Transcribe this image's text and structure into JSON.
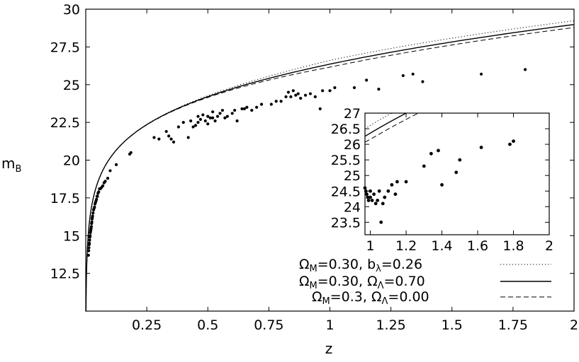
{
  "chart_data": [
    {
      "id": "main",
      "type": "line",
      "title": "",
      "xlabel": "z",
      "ylabel": "m",
      "ylabel_sub": "B",
      "xlim": [
        0,
        2
      ],
      "ylim": [
        10,
        30
      ],
      "grid": false,
      "x_ticks": [
        0.25,
        0.5,
        0.75,
        1,
        1.25,
        1.5,
        1.75,
        2
      ],
      "x_tick_labels": [
        "0.25",
        "0.5",
        "0.75",
        "1",
        "1.25",
        "1.5",
        "1.75",
        "2"
      ],
      "y_ticks": [
        12.5,
        15,
        17.5,
        20,
        22.5,
        25,
        27.5,
        30
      ],
      "y_tick_labels": [
        "12.5",
        "15",
        "17.5",
        "20",
        "22.5",
        "25",
        "27.5",
        "30"
      ],
      "series": [
        {
          "key": "omm_b",
          "style": "dotted",
          "offset": 0.25
        },
        {
          "key": "omm_ol70",
          "style": "solid",
          "offset": 0
        },
        {
          "key": "omm_ol00",
          "style": "dashed",
          "offset": -0.2
        }
      ],
      "points": [
        [
          0.011,
          13.7
        ],
        [
          0.012,
          14.0
        ],
        [
          0.013,
          14.2
        ],
        [
          0.014,
          14.4
        ],
        [
          0.015,
          14.5
        ],
        [
          0.016,
          14.7
        ],
        [
          0.017,
          14.9
        ],
        [
          0.018,
          15.0
        ],
        [
          0.019,
          15.2
        ],
        [
          0.02,
          15.3
        ],
        [
          0.021,
          15.4
        ],
        [
          0.022,
          15.5
        ],
        [
          0.023,
          15.6
        ],
        [
          0.024,
          15.8
        ],
        [
          0.025,
          15.9
        ],
        [
          0.026,
          16.1
        ],
        [
          0.027,
          16.2
        ],
        [
          0.028,
          16.3
        ],
        [
          0.03,
          16.5
        ],
        [
          0.032,
          16.7
        ],
        [
          0.034,
          16.8
        ],
        [
          0.036,
          16.9
        ],
        [
          0.038,
          17.1
        ],
        [
          0.04,
          17.2
        ],
        [
          0.042,
          17.3
        ],
        [
          0.044,
          17.4
        ],
        [
          0.046,
          17.6
        ],
        [
          0.048,
          17.6
        ],
        [
          0.05,
          17.8
        ],
        [
          0.053,
          17.9
        ],
        [
          0.056,
          18.1
        ],
        [
          0.06,
          18.1
        ],
        [
          0.065,
          18.2
        ],
        [
          0.07,
          18.3
        ],
        [
          0.075,
          18.5
        ],
        [
          0.08,
          18.6
        ],
        [
          0.09,
          18.8
        ],
        [
          0.1,
          19.3
        ],
        [
          0.125,
          19.7
        ],
        [
          0.18,
          20.4
        ],
        [
          0.185,
          20.5
        ],
        [
          0.28,
          21.5
        ],
        [
          0.3,
          21.4
        ],
        [
          0.33,
          21.9
        ],
        [
          0.34,
          21.6
        ],
        [
          0.35,
          21.4
        ],
        [
          0.36,
          21.2
        ],
        [
          0.38,
          22.2
        ],
        [
          0.4,
          22.5
        ],
        [
          0.42,
          21.5
        ],
        [
          0.43,
          22.6
        ],
        [
          0.44,
          22.2
        ],
        [
          0.45,
          22.3
        ],
        [
          0.46,
          22.5
        ],
        [
          0.46,
          22.9
        ],
        [
          0.47,
          22.7
        ],
        [
          0.48,
          23.0
        ],
        [
          0.49,
          22.6
        ],
        [
          0.5,
          22.9
        ],
        [
          0.5,
          22.4
        ],
        [
          0.51,
          22.8
        ],
        [
          0.52,
          22.8
        ],
        [
          0.52,
          23.2
        ],
        [
          0.53,
          22.6
        ],
        [
          0.54,
          22.9
        ],
        [
          0.55,
          23.1
        ],
        [
          0.56,
          23.3
        ],
        [
          0.57,
          22.8
        ],
        [
          0.58,
          22.9
        ],
        [
          0.6,
          23.1
        ],
        [
          0.61,
          23.3
        ],
        [
          0.62,
          22.6
        ],
        [
          0.64,
          23.4
        ],
        [
          0.65,
          23.4
        ],
        [
          0.66,
          23.5
        ],
        [
          0.68,
          23.3
        ],
        [
          0.7,
          23.5
        ],
        [
          0.72,
          23.7
        ],
        [
          0.76,
          23.7
        ],
        [
          0.78,
          23.9
        ],
        [
          0.8,
          23.9
        ],
        [
          0.82,
          24.2
        ],
        [
          0.83,
          24.5
        ],
        [
          0.84,
          24.2
        ],
        [
          0.85,
          24.6
        ],
        [
          0.86,
          24.3
        ],
        [
          0.87,
          24.4
        ],
        [
          0.88,
          24.1
        ],
        [
          0.9,
          24.3
        ],
        [
          0.92,
          24.4
        ],
        [
          0.94,
          24.2
        ],
        [
          0.96,
          23.4
        ],
        [
          0.97,
          24.6
        ],
        [
          1.0,
          24.6
        ],
        [
          1.02,
          24.8
        ],
        [
          1.1,
          24.8
        ],
        [
          1.15,
          25.3
        ],
        [
          1.2,
          24.7
        ],
        [
          1.3,
          25.6
        ],
        [
          1.34,
          25.7
        ],
        [
          1.38,
          25.2
        ],
        [
          1.62,
          25.7
        ],
        [
          1.8,
          26.0
        ]
      ]
    },
    {
      "id": "inset",
      "type": "line",
      "title": "",
      "xlim": [
        0.97,
        2
      ],
      "ylim": [
        23.1,
        27
      ],
      "grid": false,
      "x_ticks": [
        1.2,
        1.4,
        1.6,
        1.8,
        2
      ],
      "x_tick_labels": [
        "1.2",
        "1.4",
        "1.6",
        "1.8",
        "2"
      ],
      "x_minor_ticks": [
        1
      ],
      "x_minor_labels": [
        "1"
      ],
      "y_ticks": [
        23.5,
        24,
        24.5,
        25,
        25.5,
        26,
        26.5,
        27
      ],
      "y_tick_labels": [
        "23.5",
        "24",
        "24.5",
        "25",
        "25.5",
        "26",
        "26.5",
        "27"
      ],
      "series": [
        {
          "key": "omm_b",
          "style": "dotted",
          "offset": 0.25
        },
        {
          "key": "omm_ol70",
          "style": "solid",
          "offset": 0
        },
        {
          "key": "omm_ol00",
          "style": "dashed",
          "offset": -0.2
        }
      ],
      "points": [
        [
          0.97,
          24.6
        ],
        [
          0.975,
          24.5
        ],
        [
          0.98,
          24.4
        ],
        [
          0.985,
          24.3
        ],
        [
          0.99,
          24.2
        ],
        [
          1.0,
          24.5
        ],
        [
          1.0,
          24.3
        ],
        [
          1.01,
          24.2
        ],
        [
          1.02,
          24.4
        ],
        [
          1.03,
          24.1
        ],
        [
          1.04,
          24.2
        ],
        [
          1.05,
          24.5
        ],
        [
          1.06,
          23.5
        ],
        [
          1.07,
          24.1
        ],
        [
          1.08,
          24.3
        ],
        [
          1.1,
          24.5
        ],
        [
          1.12,
          24.7
        ],
        [
          1.14,
          24.4
        ],
        [
          1.15,
          24.8
        ],
        [
          1.2,
          24.8
        ],
        [
          1.3,
          25.3
        ],
        [
          1.34,
          25.7
        ],
        [
          1.38,
          25.8
        ],
        [
          1.4,
          24.7
        ],
        [
          1.48,
          25.1
        ],
        [
          1.5,
          25.5
        ],
        [
          1.62,
          25.9
        ],
        [
          1.78,
          26.0
        ],
        [
          1.8,
          26.1
        ]
      ]
    }
  ],
  "legend": {
    "placement": "bottom-right",
    "entries": [
      {
        "key": "omm_b",
        "style": "dotted",
        "om": "0.30",
        "sep": ",  ",
        "second_symbol": "b",
        "second_sub": "λ",
        "second_value": "=0.26"
      },
      {
        "key": "omm_ol70",
        "style": "solid",
        "om": "0.30",
        "sep": ",   ",
        "second_symbol": "Ω",
        "second_sub": "Λ",
        "second_value": "=0.70"
      },
      {
        "key": "omm_ol00",
        "style": "dashed",
        "om": "0.3",
        "sep": ",   ",
        "second_symbol": "Ω",
        "second_sub": "Λ",
        "second_value": "=0.00"
      }
    ],
    "first_symbol": "Ω",
    "first_sub": "M"
  }
}
